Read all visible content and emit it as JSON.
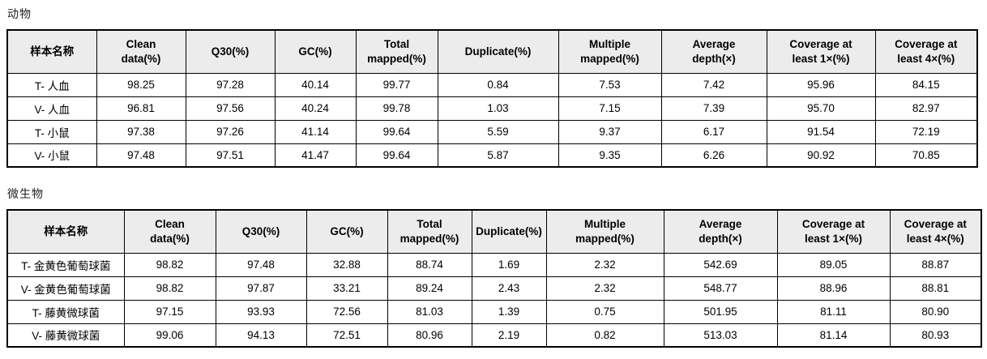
{
  "sections": [
    {
      "title": "动物",
      "table": {
        "type": "table",
        "columns": [
          "样本名称",
          "Clean\ndata(%)",
          "Q30(%)",
          "GC(%)",
          "Total\nmapped(%)",
          "Duplicate(%)",
          "Multiple\nmapped(%)",
          "Average\ndepth(×)",
          "Coverage at\nleast 1×(%)",
          "Coverage at\nleast 4×(%)"
        ],
        "rows": [
          [
            "T- 人血",
            "98.25",
            "97.28",
            "40.14",
            "99.77",
            "0.84",
            "7.53",
            "7.42",
            "95.96",
            "84.15"
          ],
          [
            "V- 人血",
            "96.81",
            "97.56",
            "40.24",
            "99.78",
            "1.03",
            "7.15",
            "7.39",
            "95.70",
            "82.97"
          ],
          [
            "T- 小鼠",
            "97.38",
            "97.26",
            "41.14",
            "99.64",
            "5.59",
            "9.37",
            "6.17",
            "91.54",
            "72.19"
          ],
          [
            "V- 小鼠",
            "97.48",
            "97.51",
            "41.47",
            "99.64",
            "5.87",
            "9.35",
            "6.26",
            "90.92",
            "70.85"
          ]
        ]
      }
    },
    {
      "title": "微生物",
      "table": {
        "type": "table",
        "columns": [
          "样本名称",
          "Clean\ndata(%)",
          "Q30(%)",
          "GC(%)",
          "Total\nmapped(%)",
          "Duplicate(%)",
          "Multiple\nmapped(%)",
          "Average\ndepth(×)",
          "Coverage at\nleast 1×(%)",
          "Coverage at\nleast 4×(%)"
        ],
        "rows": [
          [
            "T- 金黄色葡萄球菌",
            "98.82",
            "97.48",
            "32.88",
            "88.74",
            "1.69",
            "2.32",
            "542.69",
            "89.05",
            "88.87"
          ],
          [
            "V- 金黄色葡萄球菌",
            "98.82",
            "97.87",
            "33.21",
            "89.24",
            "2.43",
            "2.32",
            "548.77",
            "88.96",
            "88.81"
          ],
          [
            "T- 藤黄微球菌",
            "97.15",
            "93.93",
            "72.56",
            "81.03",
            "1.39",
            "0.75",
            "501.95",
            "81.11",
            "80.90"
          ],
          [
            "V- 藤黄微球菌",
            "99.06",
            "94.13",
            "72.51",
            "80.96",
            "2.19",
            "0.82",
            "513.03",
            "81.14",
            "80.93"
          ]
        ]
      }
    }
  ],
  "colors": {
    "header_background": "#ececec",
    "border": "#000000",
    "text": "#000000"
  }
}
